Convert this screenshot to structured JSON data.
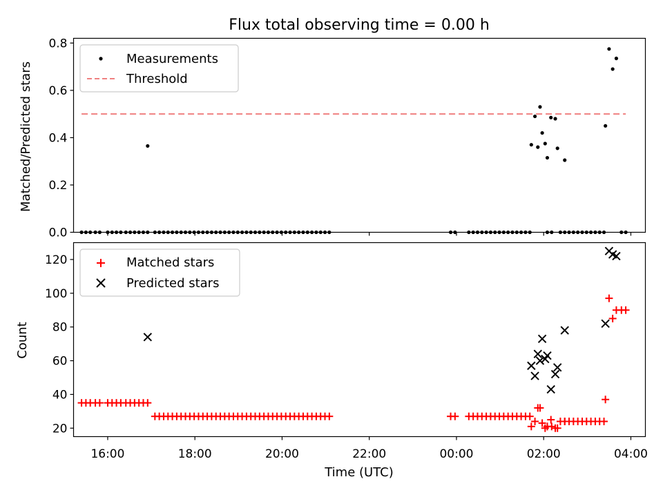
{
  "chart_data": [
    {
      "type": "scatter",
      "title": "Flux total observing time = 0.00 h",
      "xlabel": "",
      "ylabel": "Matched/Predicted stars",
      "xlim": [
        "15:13",
        "04:20"
      ],
      "ylim": [
        0.0,
        0.82
      ],
      "yticks": [
        0.0,
        0.2,
        0.4,
        0.6,
        0.8
      ],
      "ytick_labels": [
        "0.0",
        "0.2",
        "0.4",
        "0.6",
        "0.8"
      ],
      "legend": "top-left",
      "grid": false,
      "series": [
        {
          "name": "Measurements",
          "kind": "points",
          "color": "#000000",
          "x": [
            "15:24",
            "15:30",
            "15:36",
            "15:43",
            "15:49",
            "16:00",
            "16:06",
            "16:12",
            "16:18",
            "16:25",
            "16:31",
            "16:37",
            "16:43",
            "16:49",
            "16:55",
            "17:05",
            "17:11",
            "17:17",
            "17:23",
            "17:29",
            "17:35",
            "17:41",
            "17:47",
            "17:53",
            "17:59",
            "18:05",
            "18:11",
            "18:17",
            "18:23",
            "18:29",
            "18:35",
            "18:41",
            "18:47",
            "18:53",
            "18:59",
            "19:05",
            "19:11",
            "19:17",
            "19:23",
            "19:29",
            "19:35",
            "19:41",
            "19:47",
            "19:53",
            "19:59",
            "20:05",
            "20:11",
            "20:17",
            "20:23",
            "20:29",
            "20:35",
            "20:41",
            "20:47",
            "20:53",
            "20:59",
            "21:05",
            "23:52",
            "23:58",
            "00:17",
            "00:23",
            "00:29",
            "00:35",
            "00:41",
            "00:47",
            "00:53",
            "00:59",
            "01:05",
            "01:11",
            "01:17",
            "01:23",
            "01:29",
            "01:35",
            "01:41",
            "02:05",
            "02:11",
            "02:23",
            "02:29",
            "02:35",
            "02:41",
            "02:47",
            "02:53",
            "02:59",
            "03:05",
            "03:11",
            "03:17",
            "03:23",
            "03:47",
            "03:53",
            "16:55",
            "01:43",
            "01:48",
            "01:52",
            "01:55",
            "01:58",
            "02:02",
            "02:05",
            "02:10",
            "02:16",
            "02:19",
            "02:29",
            "03:25",
            "03:30",
            "03:35",
            "03:40"
          ],
          "y": [
            0,
            0,
            0,
            0,
            0,
            0,
            0,
            0,
            0,
            0,
            0,
            0,
            0,
            0,
            0,
            0,
            0,
            0,
            0,
            0,
            0,
            0,
            0,
            0,
            0,
            0,
            0,
            0,
            0,
            0,
            0,
            0,
            0,
            0,
            0,
            0,
            0,
            0,
            0,
            0,
            0,
            0,
            0,
            0,
            0,
            0,
            0,
            0,
            0,
            0,
            0,
            0,
            0,
            0,
            0,
            0,
            0,
            0,
            0,
            0,
            0,
            0,
            0,
            0,
            0,
            0,
            0,
            0,
            0,
            0,
            0,
            0,
            0,
            0,
            0,
            0,
            0,
            0,
            0,
            0,
            0,
            0,
            0,
            0,
            0,
            0,
            0,
            0,
            0.365,
            0.37,
            0.49,
            0.36,
            0.53,
            0.42,
            0.375,
            0.315,
            0.485,
            0.48,
            0.355,
            0.305,
            0.45,
            0.775,
            0.69,
            0.735
          ]
        },
        {
          "name": "Threshold",
          "kind": "dashed-line",
          "color": "#f08080",
          "x": [
            "15:24",
            "03:53"
          ],
          "y": [
            0.5,
            0.5
          ]
        }
      ]
    },
    {
      "type": "scatter",
      "title": "",
      "xlabel": "Time (UTC)",
      "ylabel": "Count",
      "xlim": [
        "15:13",
        "04:20"
      ],
      "ylim": [
        15,
        130
      ],
      "yticks": [
        20,
        40,
        60,
        80,
        100,
        120
      ],
      "ytick_labels": [
        "20",
        "40",
        "60",
        "80",
        "100",
        "120"
      ],
      "xticks": [
        "16:00",
        "18:00",
        "20:00",
        "22:00",
        "00:00",
        "02:00",
        "04:00"
      ],
      "legend": "top-left",
      "grid": false,
      "series": [
        {
          "name": "Matched stars",
          "kind": "plus",
          "color": "#ff0000",
          "x": [
            "15:24",
            "15:30",
            "15:36",
            "15:43",
            "15:49",
            "16:00",
            "16:06",
            "16:12",
            "16:18",
            "16:25",
            "16:31",
            "16:37",
            "16:43",
            "16:49",
            "16:55",
            "17:05",
            "17:11",
            "17:17",
            "17:23",
            "17:29",
            "17:35",
            "17:41",
            "17:47",
            "17:53",
            "17:59",
            "18:05",
            "18:11",
            "18:17",
            "18:23",
            "18:29",
            "18:35",
            "18:41",
            "18:47",
            "18:53",
            "18:59",
            "19:05",
            "19:11",
            "19:17",
            "19:23",
            "19:29",
            "19:35",
            "19:41",
            "19:47",
            "19:53",
            "19:59",
            "20:05",
            "20:11",
            "20:17",
            "20:23",
            "20:29",
            "20:35",
            "20:41",
            "20:47",
            "20:53",
            "20:59",
            "21:05",
            "23:52",
            "23:58",
            "00:17",
            "00:23",
            "00:29",
            "00:35",
            "00:41",
            "00:47",
            "00:53",
            "00:59",
            "01:05",
            "01:11",
            "01:17",
            "01:23",
            "01:29",
            "01:35",
            "01:41",
            "02:05",
            "02:11",
            "02:23",
            "02:29",
            "02:35",
            "02:41",
            "02:47",
            "02:53",
            "02:59",
            "03:05",
            "03:11",
            "03:17",
            "03:23",
            "01:43",
            "01:48",
            "01:52",
            "01:55",
            "01:58",
            "02:02",
            "02:05",
            "02:10",
            "02:16",
            "02:19",
            "02:29",
            "03:25",
            "03:30",
            "03:35",
            "03:40",
            "03:47",
            "03:53"
          ],
          "y": [
            35,
            35,
            35,
            35,
            35,
            35,
            35,
            35,
            35,
            35,
            35,
            35,
            35,
            35,
            35,
            27,
            27,
            27,
            27,
            27,
            27,
            27,
            27,
            27,
            27,
            27,
            27,
            27,
            27,
            27,
            27,
            27,
            27,
            27,
            27,
            27,
            27,
            27,
            27,
            27,
            27,
            27,
            27,
            27,
            27,
            27,
            27,
            27,
            27,
            27,
            27,
            27,
            27,
            27,
            27,
            27,
            27,
            27,
            27,
            27,
            27,
            27,
            27,
            27,
            27,
            27,
            27,
            27,
            27,
            27,
            27,
            27,
            27,
            21,
            21,
            24,
            24,
            24,
            24,
            24,
            24,
            24,
            24,
            24,
            24,
            24,
            21,
            24,
            32,
            32,
            23,
            20,
            21,
            25,
            20,
            20,
            24,
            37,
            97,
            85,
            90,
            90,
            90
          ]
        },
        {
          "name": "Predicted stars",
          "kind": "x",
          "color": "#000000",
          "x": [
            "16:55",
            "01:43",
            "01:48",
            "01:52",
            "01:55",
            "01:58",
            "02:02",
            "02:05",
            "02:10",
            "02:16",
            "02:19",
            "02:29",
            "03:25",
            "03:30",
            "03:35",
            "03:40"
          ],
          "y": [
            74,
            57,
            51,
            64,
            60,
            73,
            61,
            63,
            43,
            52,
            56,
            78,
            82,
            125,
            123,
            122
          ]
        }
      ]
    }
  ]
}
